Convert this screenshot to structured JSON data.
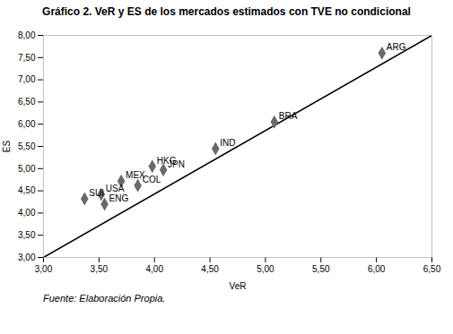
{
  "chart_data": {
    "type": "scatter",
    "title": "Gráfico 2. VeR y ES de los mercados estimados con TVE no condicional",
    "caption": "Fuente: Elaboración Propia.",
    "xlabel": "VeR",
    "ylabel": "ES",
    "labels": [
      "SUI",
      "ENG",
      "USA",
      "MEX",
      "COL",
      "HKG",
      "JPN",
      "IND",
      "BRA",
      "ARG"
    ],
    "x": [
      3.37,
      3.55,
      3.52,
      3.7,
      3.85,
      3.98,
      4.08,
      4.55,
      5.08,
      6.05
    ],
    "values": [
      4.32,
      4.2,
      4.42,
      4.72,
      4.62,
      5.05,
      4.97,
      5.45,
      6.05,
      7.6
    ],
    "color": "#696969",
    "marker": "diamond",
    "line": {
      "x": [
        3.0,
        6.5
      ],
      "values": [
        3.0,
        8.0
      ],
      "color": "#000000"
    },
    "xlim": [
      3.0,
      6.5
    ],
    "ylim": [
      3.0,
      8.0
    ],
    "xticks": [
      {
        "value": 3.0,
        "label": "3,00"
      },
      {
        "value": 3.5,
        "label": "3,50"
      },
      {
        "value": 4.0,
        "label": "4,00"
      },
      {
        "value": 4.5,
        "label": "4,50"
      },
      {
        "value": 5.0,
        "label": "5,00"
      },
      {
        "value": 5.5,
        "label": "5,50"
      },
      {
        "value": 6.0,
        "label": "6,00"
      },
      {
        "value": 6.5,
        "label": "6,50"
      }
    ],
    "yticks": [
      {
        "value": 3.0,
        "label": "3,00"
      },
      {
        "value": 3.5,
        "label": "3,50"
      },
      {
        "value": 4.0,
        "label": "4,00"
      },
      {
        "value": 4.5,
        "label": "4,50"
      },
      {
        "value": 5.0,
        "label": "5,00"
      },
      {
        "value": 5.5,
        "label": "5,50"
      },
      {
        "value": 6.0,
        "label": "6,00"
      },
      {
        "value": 6.5,
        "label": "6,50"
      },
      {
        "value": 7.0,
        "label": "7,00"
      },
      {
        "value": 7.5,
        "label": "7,50"
      },
      {
        "value": 8.0,
        "label": "8,00"
      }
    ],
    "grid": false
  }
}
